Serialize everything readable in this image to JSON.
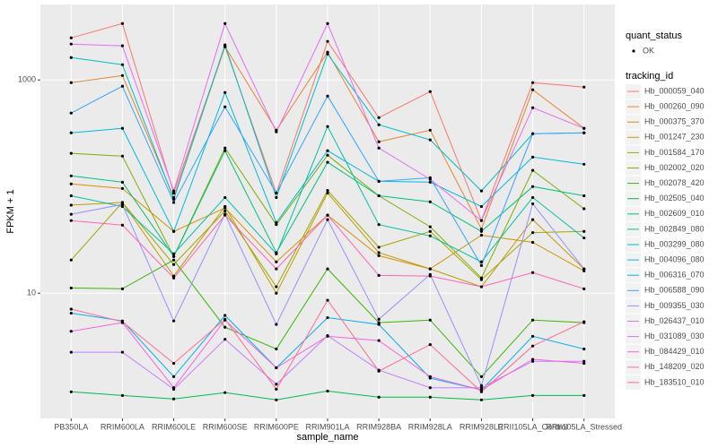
{
  "chart_data": {
    "type": "line",
    "log_y": true,
    "grid": true,
    "x_label": "sample_name",
    "y_label": "FPKM + 1",
    "point_legend_title": "quant_status",
    "point_legend_entries": [
      "OK"
    ],
    "legend_title": "tracking_id",
    "legend_position": "right",
    "categories": [
      "PB350LA",
      "RRIM600LA",
      "RRIM600LE",
      "RRIM600SE",
      "RRIM600PE",
      "RRIM901LA",
      "RRIM928BA",
      "RRIM928LA",
      "RRIM928LE",
      "RRII105LA_Control",
      "RRII105LA_Stressed"
    ],
    "ylim": [
      0.67,
      5100
    ],
    "yticks": [
      10,
      1000
    ],
    "series": [
      {
        "name": "Hb_000059_040",
        "color": "#F8766D",
        "values": [
          2480,
          3380,
          87,
          2050,
          87,
          2300,
          443,
          778,
          48,
          944,
          857
        ]
      },
      {
        "name": "Hb_000260_090",
        "color": "#EA8331",
        "values": [
          944,
          1100,
          79,
          2050,
          338,
          1820,
          263,
          338,
          40,
          809,
          352
        ]
      },
      {
        "name": "Hb_000375_370",
        "color": "#D89000",
        "values": [
          106,
          96,
          38,
          63,
          19.7,
          54,
          22.5,
          16.9,
          35,
          30,
          16.2
        ]
      },
      {
        "name": "Hb_001247_230",
        "color": "#C09B00",
        "values": [
          67,
          71,
          14.5,
          65,
          10,
          87,
          24,
          16.9,
          11.5,
          49,
          16.9
        ]
      },
      {
        "name": "Hb_001584_170",
        "color": "#A3A500",
        "values": [
          20.5,
          71,
          18.6,
          59,
          11.5,
          92,
          27,
          38,
          13.4,
          37,
          38
        ]
      },
      {
        "name": "Hb_002002_020",
        "color": "#7CAE00",
        "values": [
          205,
          193,
          22.1,
          230,
          44,
          197,
          82,
          42,
          13.9,
          142,
          62
        ]
      },
      {
        "name": "Hb_002078_420",
        "color": "#39B600",
        "values": [
          11.2,
          11,
          20.5,
          4.8,
          3,
          16.9,
          5.3,
          5.6,
          1.65,
          5.6,
          5.3
        ]
      },
      {
        "name": "Hb_002505_040",
        "color": "#00BB4E",
        "values": [
          1.19,
          1.1,
          1.02,
          1.17,
          1,
          1.21,
          1.06,
          1.06,
          1,
          1.1,
          1.1
        ]
      },
      {
        "name": "Hb_002609_010",
        "color": "#00BF7D",
        "values": [
          126,
          110,
          22.1,
          217,
          24,
          169,
          82,
          72,
          38,
          100,
          82
        ]
      },
      {
        "name": "Hb_002849_080",
        "color": "#00C1A3",
        "values": [
          82,
          65,
          23.4,
          79,
          23.4,
          366,
          44,
          34.5,
          19.7,
          79,
          33
        ]
      },
      {
        "name": "Hb_003299_080",
        "color": "#00BFC4",
        "values": [
          1620,
          1390,
          76,
          2130,
          79,
          1750,
          380,
          274,
          91,
          313,
          319
        ]
      },
      {
        "name": "Hb_004096_080",
        "color": "#00BAE0",
        "values": [
          319,
          352,
          38,
          763,
          46,
          217,
          112,
          110,
          65,
          189,
          162
        ]
      },
      {
        "name": "Hb_006316_070",
        "color": "#00B0F6",
        "values": [
          6.5,
          5.5,
          1.65,
          6.2,
          2,
          5.9,
          5.1,
          1.6,
          1.24,
          3.95,
          3
        ]
      },
      {
        "name": "Hb_006588_090",
        "color": "#35A2FF",
        "values": [
          489,
          873,
          71,
          560,
          87,
          706,
          112,
          121,
          18.2,
          313,
          319
        ]
      },
      {
        "name": "Hb_009355_030",
        "color": "#9590FF",
        "values": [
          55,
          68,
          5.5,
          55,
          5.1,
          49,
          5.7,
          15,
          1.36,
          69,
          16.9
        ]
      },
      {
        "name": "Hb_026437_010",
        "color": "#C77CFF",
        "values": [
          2.8,
          2.8,
          1.26,
          3.7,
          1.4,
          4,
          1.9,
          1.3,
          1.3,
          2.3,
          2.3
        ]
      },
      {
        "name": "Hb_031089_030",
        "color": "#E76BF3",
        "values": [
          2170,
          2090,
          91,
          3380,
          326,
          3380,
          230,
          117,
          48,
          549,
          352
        ]
      },
      {
        "name": "Hb_084429_010",
        "color": "#FA62DB",
        "values": [
          4.4,
          5.3,
          1.3,
          5.6,
          2,
          3.95,
          3.6,
          1.65,
          1.24,
          2.4,
          2.2
        ]
      },
      {
        "name": "Hb_148209_020",
        "color": "#FF62BC",
        "values": [
          48,
          43.5,
          13.9,
          54,
          16.9,
          54,
          14.7,
          14.5,
          11.5,
          15.6,
          11
        ]
      },
      {
        "name": "Hb_183510_010",
        "color": "#FF6C91",
        "values": [
          7.1,
          5.4,
          2.2,
          5.7,
          1.26,
          8.6,
          1.86,
          3.3,
          1.19,
          3.2,
          5.4
        ]
      }
    ]
  }
}
